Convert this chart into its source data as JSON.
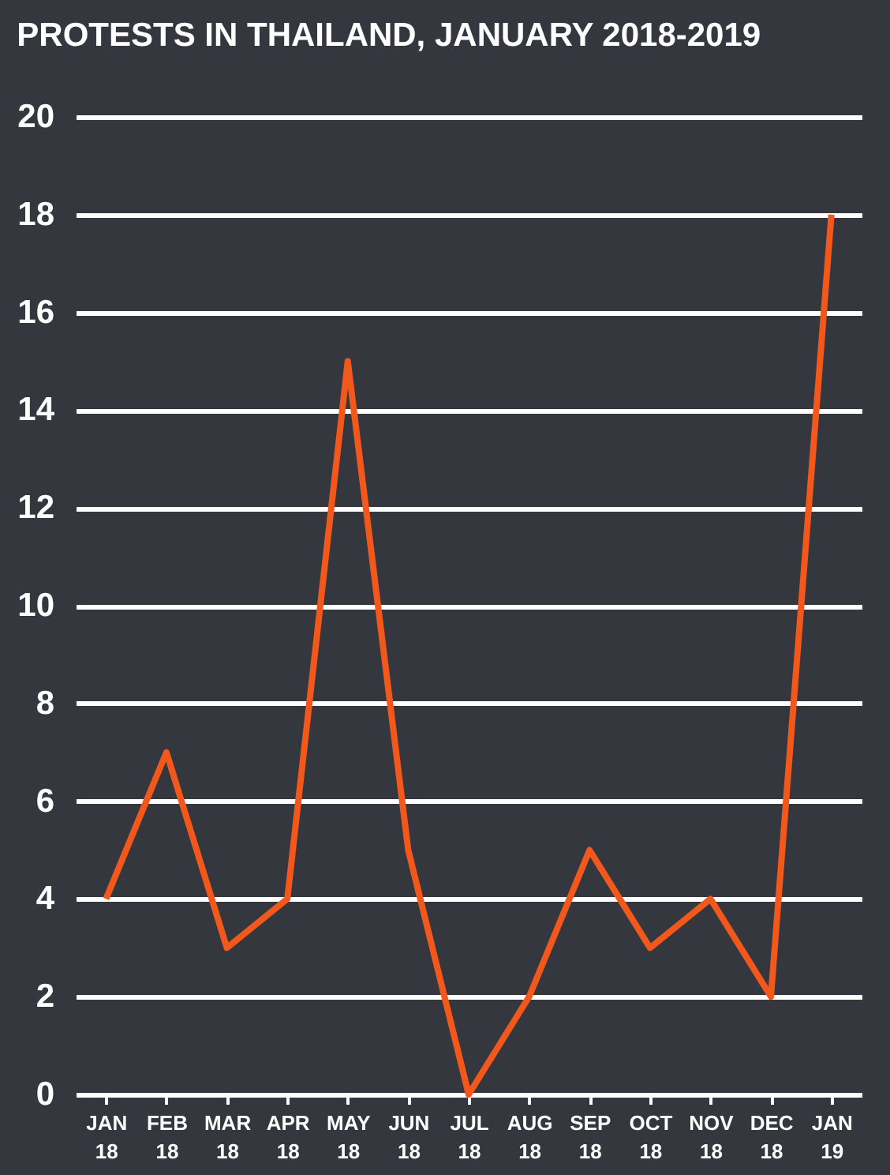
{
  "chart_data": {
    "type": "line",
    "title": "PROTESTS IN THAILAND, JANUARY 2018-2019",
    "categories": [
      "JAN 18",
      "FEB 18",
      "MAR 18",
      "APR 18",
      "MAY 18",
      "JUN 18",
      "JUL 18",
      "AUG 18",
      "SEP 18",
      "OCT 18",
      "NOV 18",
      "DEC 18",
      "JAN 19"
    ],
    "series": [
      {
        "color": "#f2581c",
        "values": [
          4,
          7,
          3,
          4,
          15,
          5,
          0,
          2,
          5,
          3,
          4,
          2,
          18
        ]
      }
    ],
    "ylim": [
      0,
      20
    ],
    "yticks": [
      0,
      2,
      4,
      6,
      8,
      10,
      12,
      14,
      16,
      18,
      20
    ],
    "grid": "y",
    "marker": "none",
    "line_style": "solid"
  }
}
